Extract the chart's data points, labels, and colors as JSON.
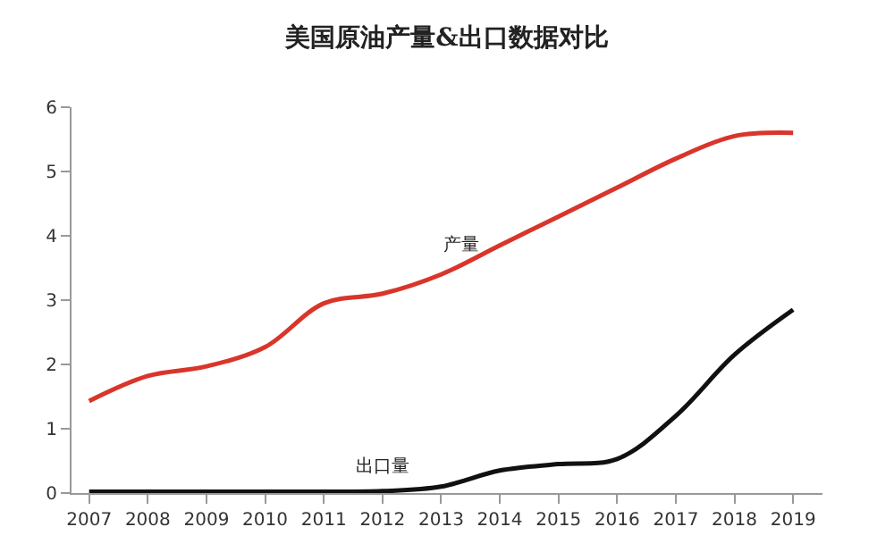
{
  "chart_data": {
    "type": "line",
    "title": "美国原油产量&出口数据对比",
    "x": [
      2007,
      2008,
      2009,
      2010,
      2011,
      2012,
      2013,
      2014,
      2015,
      2016,
      2017,
      2018,
      2019
    ],
    "series": [
      {
        "name": "产量",
        "color": "#d9352a",
        "values": [
          1.43,
          1.82,
          1.97,
          2.27,
          2.95,
          3.1,
          3.4,
          3.85,
          4.3,
          4.75,
          5.2,
          5.55,
          5.6
        ]
      },
      {
        "name": "出口量",
        "color": "#111111",
        "values": [
          0.02,
          0.02,
          0.02,
          0.02,
          0.02,
          0.03,
          0.1,
          0.35,
          0.45,
          0.53,
          1.2,
          2.15,
          2.85
        ]
      }
    ],
    "xlim": [
      2006.7,
      2019.5
    ],
    "xticks": [
      2007,
      2008,
      2009,
      2010,
      2011,
      2012,
      2013,
      2014,
      2015,
      2016,
      2017,
      2018,
      2019
    ],
    "ylim": [
      0,
      6
    ],
    "yticks": [
      0,
      1,
      2,
      3,
      4,
      5,
      6
    ],
    "legend": false,
    "marker": "none",
    "line_style": "solid"
  }
}
